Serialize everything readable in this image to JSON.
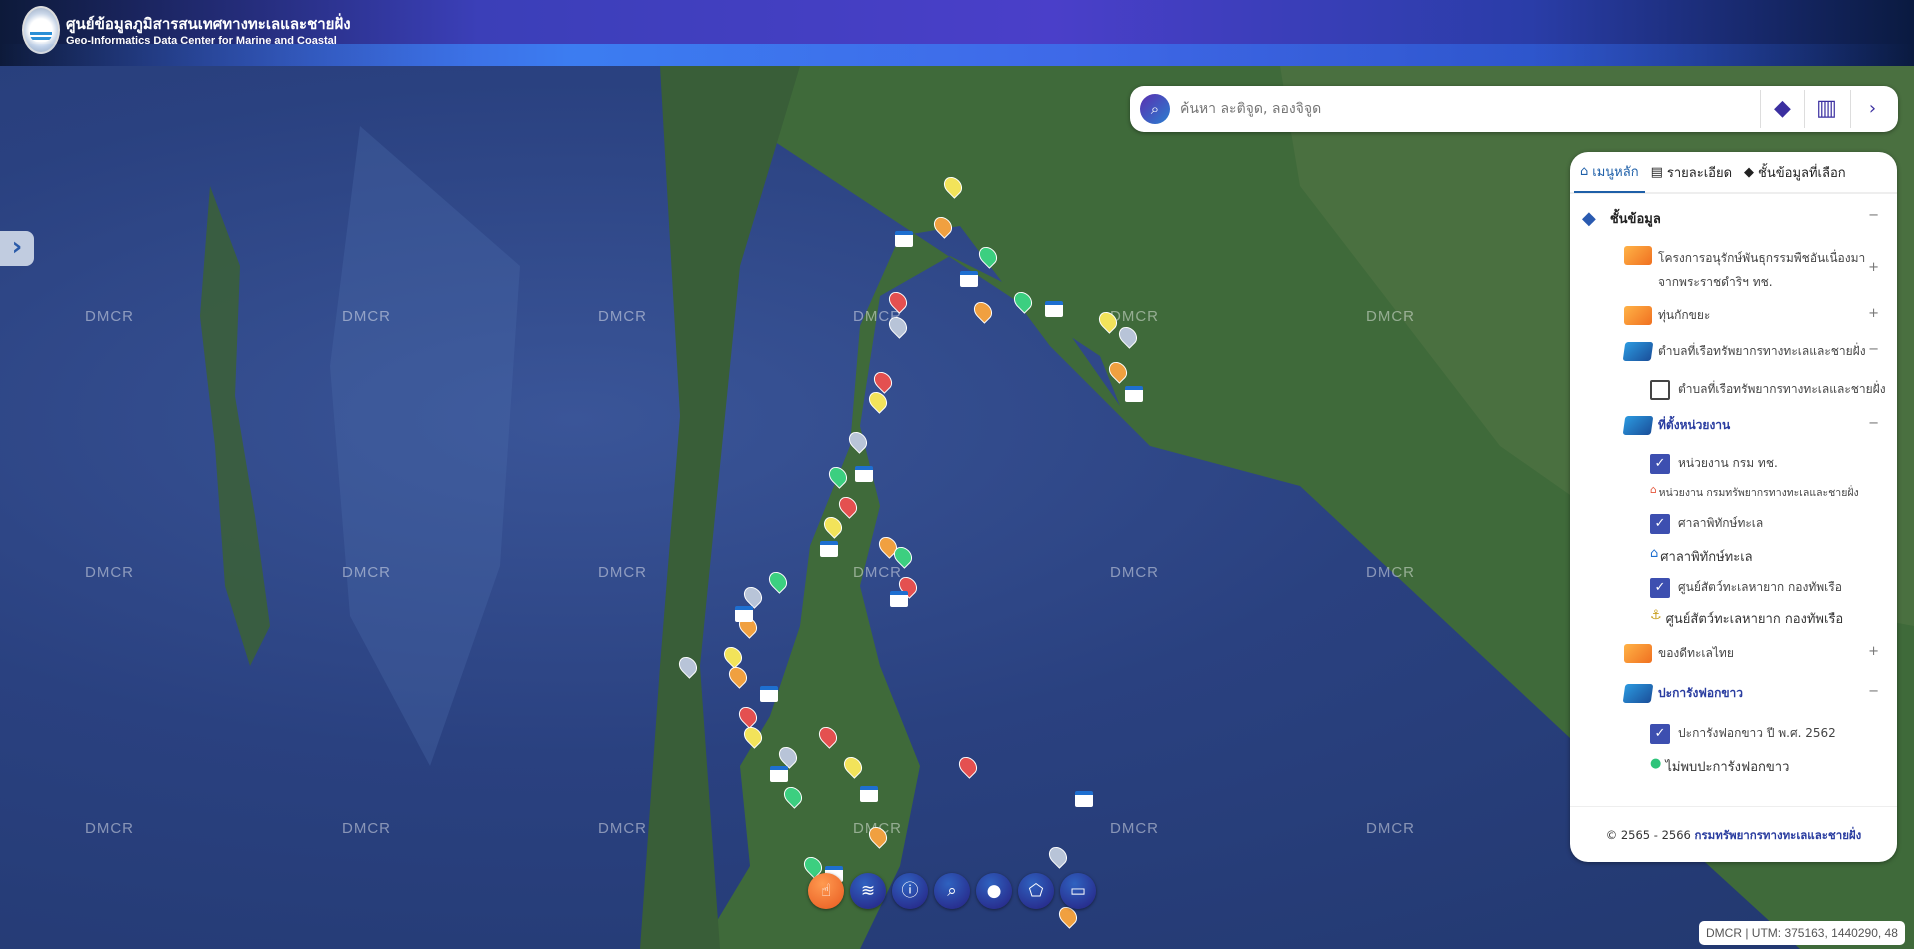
{
  "header": {
    "title_th": "ศูนย์ข้อมูลภูมิสารสนเทศทางทะเลและชายฝั่ง",
    "title_en": "Geo-Informatics Data Center for Marine and Coastal"
  },
  "map": {
    "watermark": "DMCR",
    "utm_readout": "DMCR | UTM: 375163, 1440290, 48"
  },
  "search": {
    "placeholder": "ค้นหา ละติจูด, ลองจิจูด",
    "icons": [
      "search-icon",
      "layers-icon",
      "map-icon",
      "chevron-right-icon"
    ]
  },
  "panel": {
    "tabs": [
      {
        "label": "เมนูหลัก",
        "icon": "home-icon",
        "active": true
      },
      {
        "label": "รายละเอียด",
        "icon": "document-icon"
      },
      {
        "label": "ชั้นข้อมูลที่เลือก",
        "icon": "layers-icon"
      }
    ],
    "section_title": "ชั้นข้อมูล",
    "folders": [
      {
        "label": "โครงการอนุรักษ์พันธุกรรมพืชอันเนื่องมาจากพระราชดำริฯ ทช.",
        "state": "+"
      },
      {
        "label": "ทุ่นกักขยะ",
        "state": "+"
      },
      {
        "label": "ตำบลที่เรือทรัพยากรทางทะเลและชายฝั่ง",
        "state": "−"
      },
      {
        "label": "ที่ตั้งหน่วยงาน",
        "state": "−"
      },
      {
        "label": "ของดีทะเลไทย",
        "state": "+"
      },
      {
        "label": "ปะการังฟอกขาว",
        "state": "−"
      }
    ],
    "layers": [
      {
        "label": "ตำบลที่เรือทรัพยากรทางทะเลและชายฝั่ง",
        "checked": false
      },
      {
        "label": "หน่วยงาน กรม ทช.",
        "checked": true,
        "legend": "หน่วยงาน กรมทรัพยากรทางทะเลและชายฝั่ง"
      },
      {
        "label": "ศาลาพิทักษ์ทะเล",
        "checked": true,
        "legend": "ศาลาพิทักษ์ทะเล"
      },
      {
        "label": "ศูนย์สัตว์ทะเลหายาก กองทัพเรือ",
        "checked": true,
        "legend": "ศูนย์สัตว์ทะเลหายาก กองทัพเรือ"
      },
      {
        "label": "ปะการังฟอกขาว ปี พ.ศ. 2562",
        "checked": true,
        "legend": "ไม่พบปะการังฟอกขาว"
      }
    ],
    "footer_years": "© 2565 - 2566",
    "footer_org": "กรมทรัพยากรทางทะเลและชายฝั่ง"
  },
  "tools": [
    "pointer-icon",
    "wave-icon",
    "info-icon",
    "search-icon",
    "location-pin-icon",
    "polygon-icon",
    "ruler-icon"
  ],
  "colors": {
    "accent": "#2a3da0",
    "checkbox": "#3d4fb0",
    "active_tool": "#e85a20"
  }
}
